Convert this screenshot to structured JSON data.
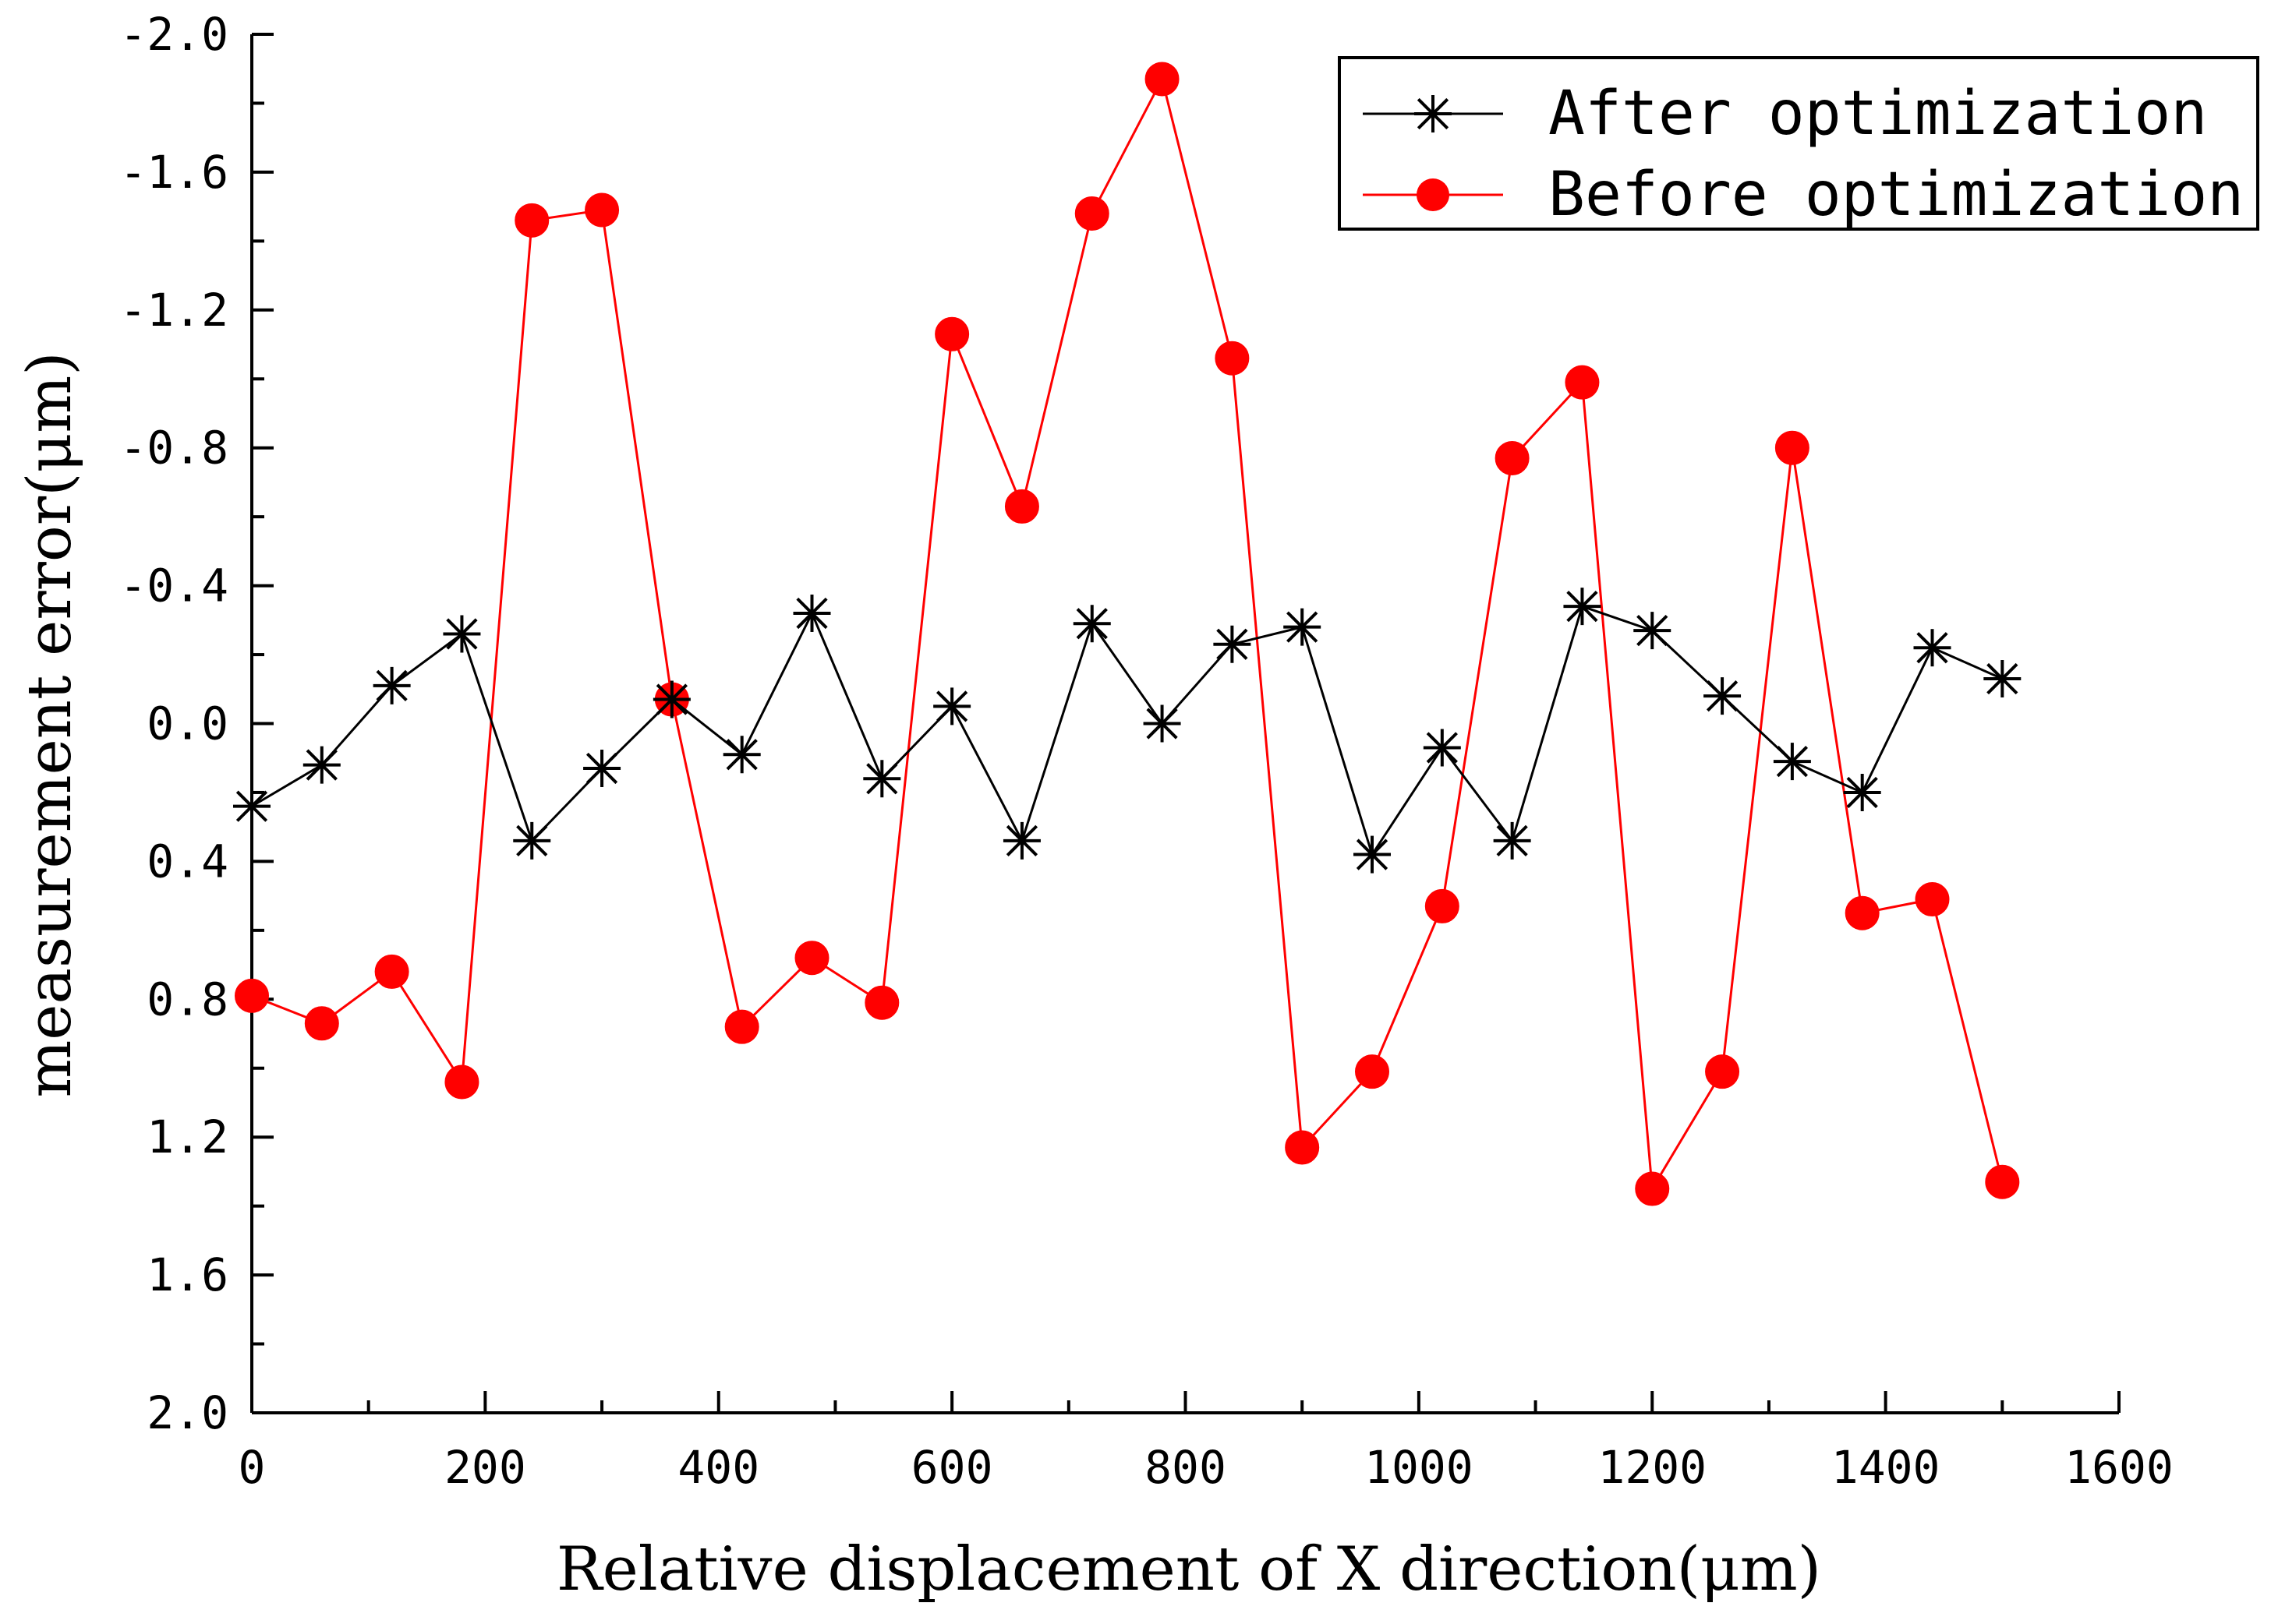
{
  "chart_data": {
    "type": "line",
    "xlabel": "Relative displacement of X direction(μm)",
    "ylabel": "measurement error(μm)",
    "xlim": [
      0,
      1600
    ],
    "ylim": [
      -2.0,
      2.0
    ],
    "y_inverted": true,
    "x_ticks": [
      0,
      200,
      400,
      600,
      800,
      1000,
      1200,
      1400,
      1600
    ],
    "x_tick_labels": [
      "0",
      "200",
      "400",
      "600",
      "800",
      "1000",
      "1200",
      "1400",
      "1600"
    ],
    "y_ticks": [
      -2.0,
      -1.6,
      -1.2,
      -0.8,
      -0.4,
      0.0,
      0.4,
      0.8,
      1.2,
      1.6,
      2.0
    ],
    "y_tick_labels": [
      "-2.0",
      "-1.6",
      "-1.2",
      "-0.8",
      "-0.4",
      "0.0",
      "0.4",
      "0.8",
      "1.2",
      "1.6",
      "2.0"
    ],
    "grid": false,
    "legend_position": "top-right",
    "x": [
      0,
      60,
      120,
      180,
      240,
      300,
      360,
      420,
      480,
      540,
      600,
      660,
      720,
      780,
      840,
      900,
      960,
      1020,
      1080,
      1140,
      1200,
      1260,
      1320,
      1380,
      1440,
      1500
    ],
    "series": [
      {
        "name": "After optimization",
        "color": "#000000",
        "marker": "asterisk",
        "values": [
          0.24,
          0.12,
          -0.11,
          -0.26,
          0.34,
          0.13,
          -0.07,
          0.09,
          -0.32,
          0.16,
          -0.05,
          0.34,
          -0.29,
          0.0,
          -0.23,
          -0.28,
          0.38,
          0.07,
          0.34,
          -0.34,
          -0.27,
          -0.08,
          0.11,
          0.2,
          -0.22,
          -0.13
        ]
      },
      {
        "name": "Before optimization",
        "color": "#ff0000",
        "marker": "circle",
        "values": [
          0.79,
          0.87,
          0.72,
          1.04,
          -1.46,
          -1.49,
          -0.07,
          0.88,
          0.68,
          0.81,
          -1.13,
          -0.63,
          -1.48,
          -1.87,
          -1.06,
          1.23,
          1.01,
          0.53,
          -0.77,
          -0.99,
          1.35,
          1.01,
          -0.8,
          0.55,
          0.51,
          1.33
        ]
      }
    ]
  }
}
